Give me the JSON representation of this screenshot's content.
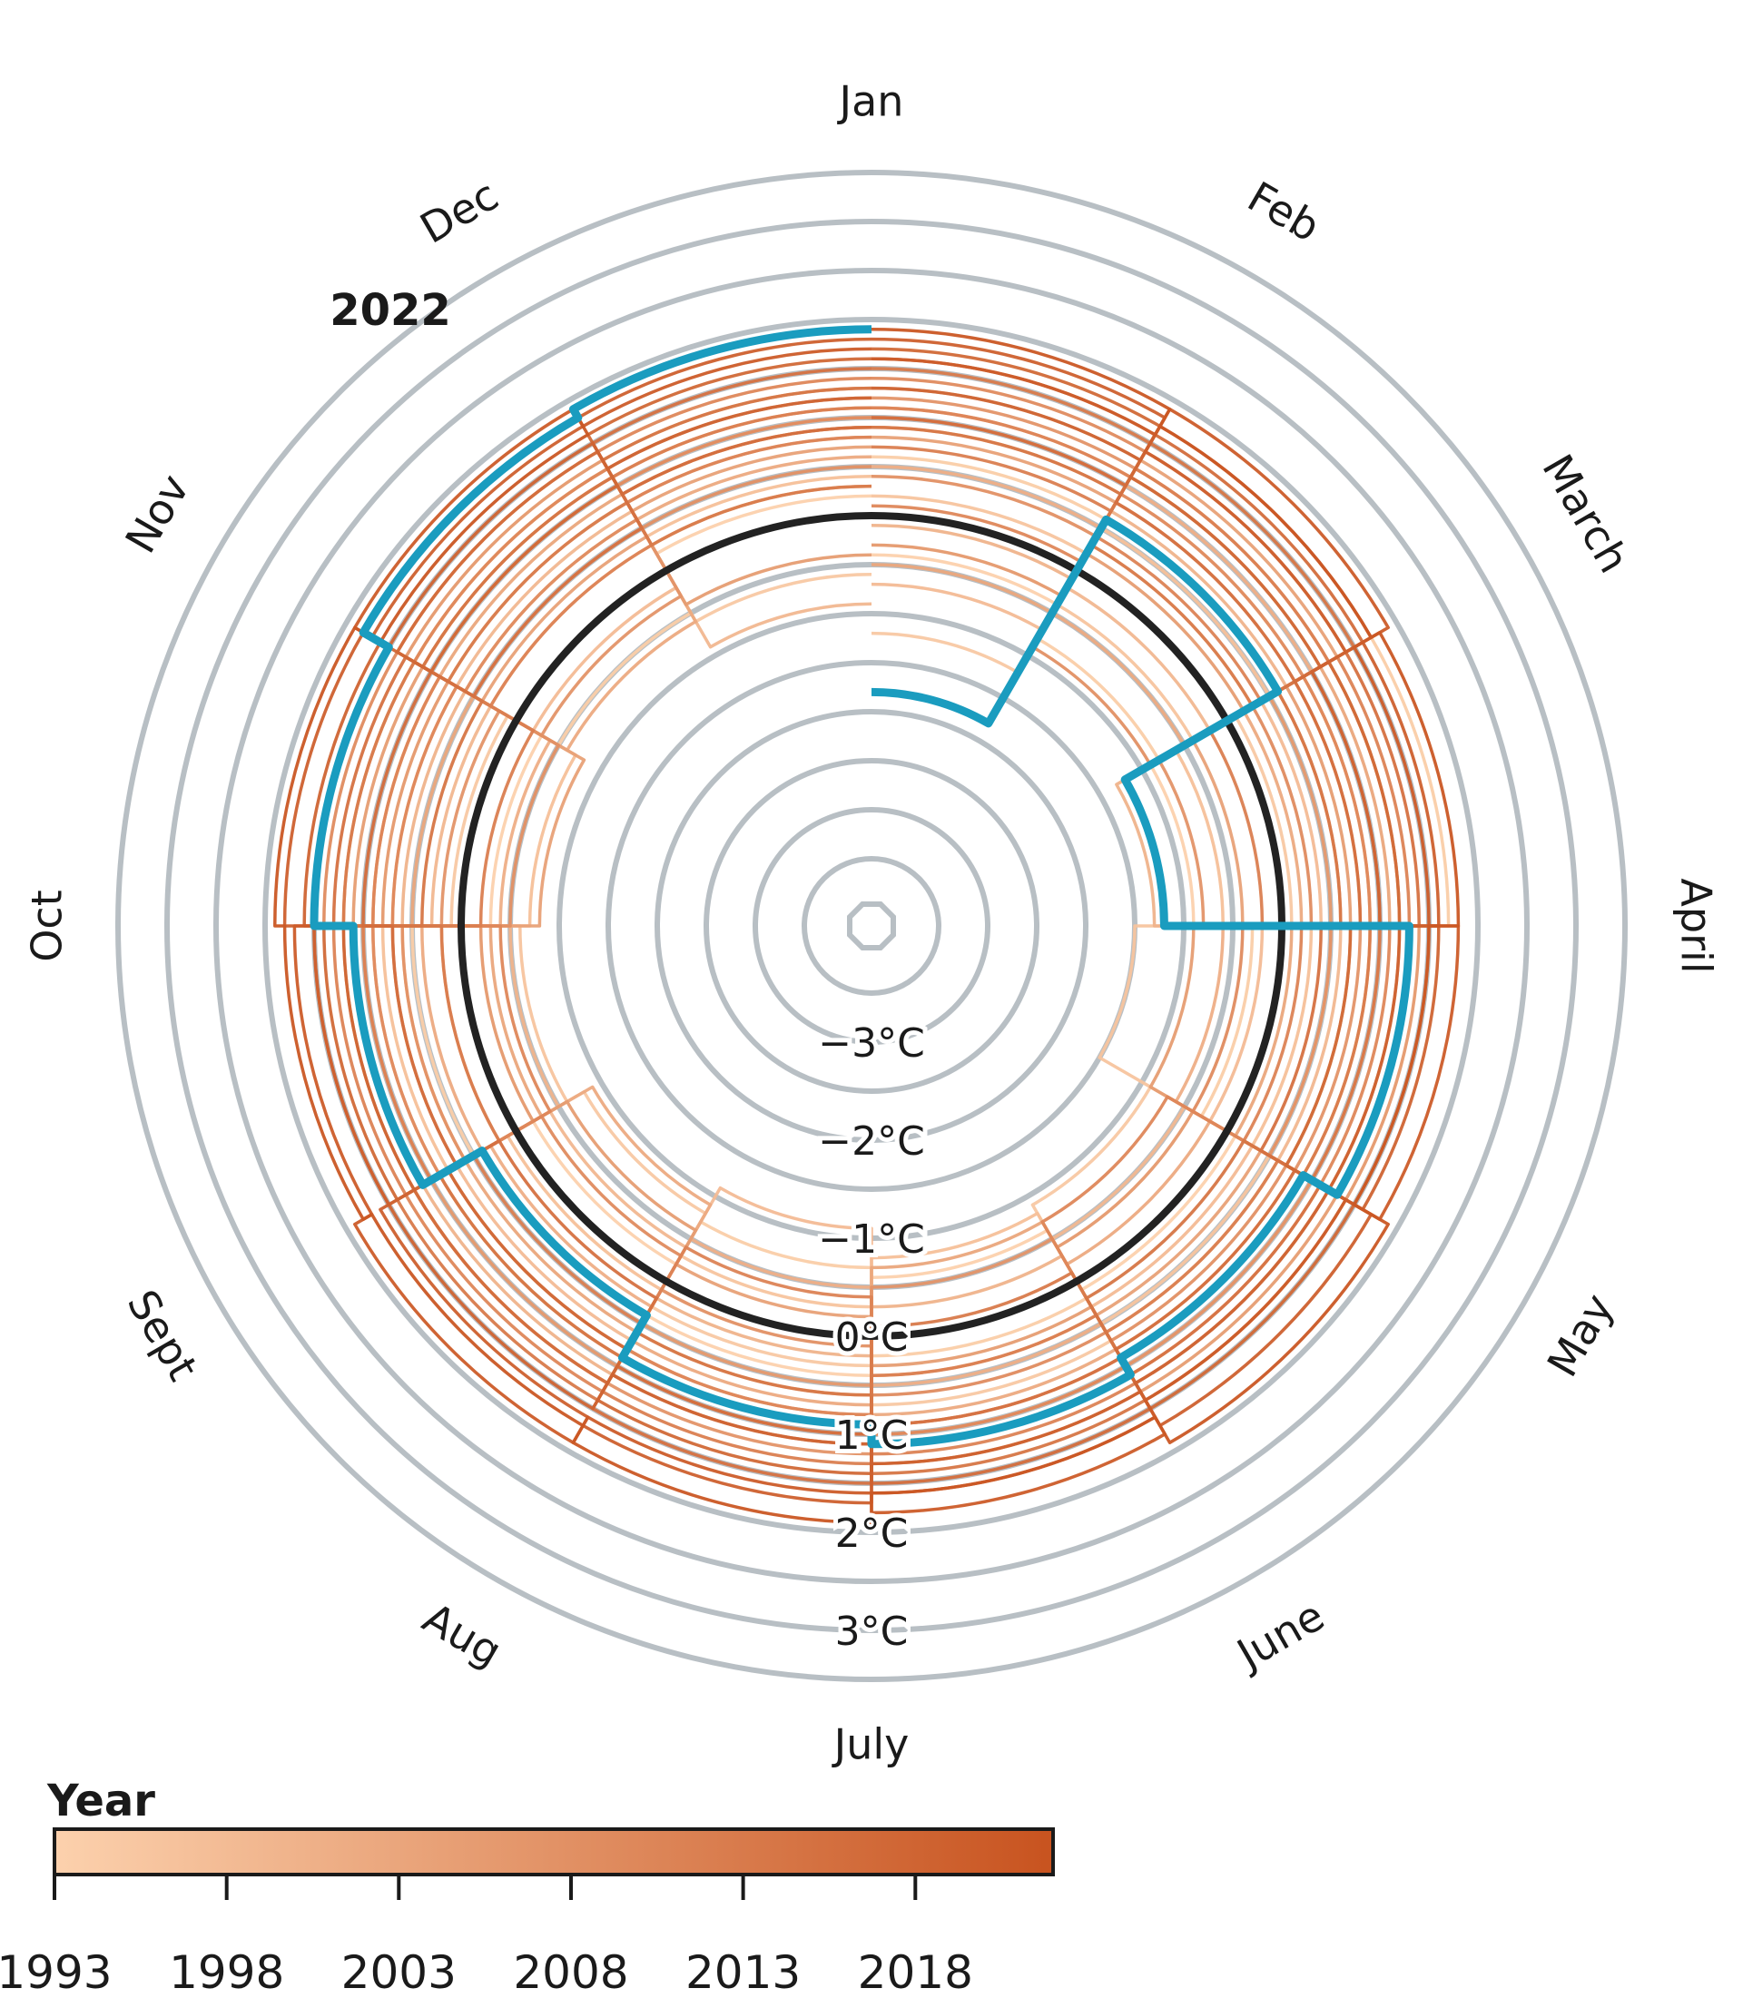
{
  "chart_data": {
    "type": "polar-line",
    "title": "",
    "corner_label": "",
    "angle_axis": {
      "labels": [
        "Jan",
        "Feb",
        "March",
        "April",
        "May",
        "June",
        "July",
        "Aug",
        "Sept",
        "Oct",
        "Nov",
        "Dec"
      ],
      "direction": "clockwise",
      "start": "top"
    },
    "radial_axis": {
      "unit": "°C",
      "range": [
        -4,
        3.5
      ],
      "grid_step": 0.5,
      "labels": [
        "−3°C",
        "−2°C",
        "−1°C",
        "0°C",
        "1°C",
        "2°C",
        "3°C"
      ],
      "label_values": [
        -3,
        -2,
        -1,
        0,
        1,
        2,
        3
      ],
      "grid": true
    },
    "reference": {
      "name": "0°C",
      "value": 0,
      "color": "#222222"
    },
    "highlight": {
      "name": "2022",
      "color": "#1a9cbf",
      "months": [
        "Jan",
        "Feb",
        "March",
        "April",
        "May",
        "June",
        "July",
        "Aug",
        "Sept",
        "Oct",
        "Nov",
        "Dec"
      ],
      "values": [
        -1.8,
        0.6,
        -1.2,
        1.3,
        0.9,
        1.1,
        0.9,
        0.4,
        1.1,
        1.5,
        1.8,
        1.9
      ]
    },
    "series": [
      {
        "year": 1993,
        "values": [
          -0.4,
          0.3,
          -0.9,
          0.5,
          0.1,
          -0.6,
          0.4,
          -0.2,
          1.1,
          -0.3,
          0.6,
          0.2
        ]
      },
      {
        "year": 1994,
        "values": [
          0.6,
          -0.8,
          1.7,
          -0.3,
          0.8,
          0.2,
          -0.7,
          1.2,
          0.5,
          0.9,
          -0.5,
          0.9
        ]
      },
      {
        "year": 1995,
        "values": [
          -1.2,
          0.9,
          0.1,
          1.0,
          -0.9,
          0.7,
          0.3,
          -0.8,
          0.6,
          0.1,
          0.8,
          -0.6
        ]
      },
      {
        "year": 1996,
        "values": [
          0.2,
          -0.4,
          0.8,
          -1.5,
          0.5,
          0.9,
          -0.3,
          0.4,
          -0.6,
          0.7,
          0.3,
          1.0
        ]
      },
      {
        "year": 1997,
        "values": [
          0.9,
          0.5,
          -0.6,
          0.3,
          1.1,
          -0.8,
          0.6,
          0.1,
          0.8,
          -0.7,
          1.0,
          0.4
        ]
      },
      {
        "year": 1998,
        "values": [
          -0.7,
          1.2,
          0.4,
          -0.2,
          0.3,
          1.0,
          -1.1,
          0.7,
          0.2,
          0.9,
          -0.2,
          0.8
        ]
      },
      {
        "year": 1999,
        "values": [
          1.1,
          -0.2,
          0.9,
          0.6,
          -0.5,
          0.4,
          0.9,
          -0.4,
          1.0,
          0.3,
          0.7,
          -0.9
        ]
      },
      {
        "year": 2000,
        "values": [
          -0.1,
          0.7,
          -1.3,
          0.9,
          0.6,
          -0.3,
          0.2,
          1.1,
          -0.5,
          0.6,
          1.2,
          0.3
        ]
      },
      {
        "year": 2001,
        "values": [
          0.5,
          1.0,
          0.6,
          -0.6,
          1.0,
          0.5,
          -0.5,
          0.3,
          0.9,
          -0.4,
          0.5,
          1.1
        ]
      },
      {
        "year": 2002,
        "values": [
          1.3,
          -0.5,
          0.2,
          1.2,
          -0.2,
          0.8,
          0.7,
          -0.9,
          0.4,
          1.2,
          -0.6,
          0.6
        ]
      },
      {
        "year": 2003,
        "values": [
          -0.5,
          0.8,
          1.1,
          0.1,
          0.9,
          -0.7,
          1.0,
          0.6,
          -0.3,
          0.5,
          0.9,
          1.3
        ]
      },
      {
        "year": 2004,
        "values": [
          0.8,
          1.3,
          -0.4,
          0.7,
          0.4,
          1.1,
          -0.2,
          0.9,
          1.2,
          -0.8,
          0.4,
          0.7
        ]
      },
      {
        "year": 2005,
        "values": [
          1.0,
          0.2,
          0.7,
          -0.9,
          1.3,
          0.3,
          0.8,
          -0.6,
          0.7,
          1.1,
          1.0,
          -0.4
        ]
      },
      {
        "year": 2006,
        "values": [
          -0.3,
          1.1,
          0.5,
          1.4,
          -0.4,
          0.9,
          0.5,
          1.0,
          -0.2,
          0.8,
          1.3,
          0.9
        ]
      },
      {
        "year": 2007,
        "values": [
          1.2,
          0.6,
          -0.8,
          0.8,
          1.0,
          -0.5,
          1.2,
          0.4,
          1.1,
          0.2,
          -0.3,
          1.2
        ]
      },
      {
        "year": 2008,
        "values": [
          0.4,
          -0.9,
          1.2,
          0.5,
          0.7,
          1.3,
          0.1,
          1.2,
          0.6,
          -0.5,
          1.1,
          0.5
        ]
      },
      {
        "year": 2009,
        "values": [
          1.4,
          0.9,
          0.3,
          -0.4,
          1.2,
          0.6,
          1.1,
          -0.3,
          0.9,
          1.4,
          0.6,
          1.0
        ]
      },
      {
        "year": 2010,
        "values": [
          0.1,
          1.4,
          0.9,
          1.1,
          -0.7,
          1.0,
          0.8,
          1.3,
          -0.4,
          0.7,
          1.2,
          1.4
        ]
      },
      {
        "year": 2011,
        "values": [
          1.1,
          0.4,
          1.3,
          0.2,
          0.9,
          1.2,
          -0.4,
          0.8,
          1.3,
          0.9,
          0.3,
          0.8
        ]
      },
      {
        "year": 2012,
        "values": [
          0.7,
          1.2,
          -0.2,
          1.5,
          0.6,
          0.4,
          1.3,
          0.5,
          1.0,
          -0.2,
          1.4,
          1.1
        ]
      },
      {
        "year": 2013,
        "values": [
          1.5,
          0.3,
          1.0,
          0.9,
          1.4,
          -0.1,
          0.9,
          1.4,
          0.2,
          1.2,
          0.8,
          0.3
        ]
      },
      {
        "year": 2014,
        "values": [
          0.9,
          1.5,
          0.6,
          1.0,
          0.2,
          1.4,
          0.6,
          0.9,
          1.5,
          0.4,
          1.1,
          1.3
        ]
      },
      {
        "year": 2015,
        "values": [
          1.6,
          0.8,
          1.4,
          0.4,
          1.1,
          0.9,
          1.5,
          0.2,
          1.1,
          1.3,
          0.5,
          1.5
        ]
      },
      {
        "year": 2016,
        "values": [
          1.0,
          1.6,
          0.8,
          1.3,
          0.8,
          1.5,
          1.0,
          1.2,
          0.7,
          1.0,
          1.4,
          0.9
        ]
      },
      {
        "year": 2017,
        "values": [
          1.7,
          1.1,
          1.2,
          0.7,
          1.5,
          1.1,
          1.4,
          0.8,
          1.4,
          1.5,
          1.0,
          1.6
        ]
      },
      {
        "year": 2018,
        "values": [
          1.3,
          1.7,
          1.0,
          1.6,
          1.2,
          1.6,
          1.1,
          1.5,
          1.2,
          1.6,
          1.5,
          1.2
        ]
      },
      {
        "year": 2019,
        "values": [
          1.8,
          1.4,
          1.6,
          1.2,
          1.7,
          1.3,
          1.7,
          1.6,
          1.5,
          1.8,
          1.7,
          1.8
        ]
      },
      {
        "year": 2020,
        "values": [
          1.6,
          1.9,
          1.5,
          1.8,
          1.4,
          1.8,
          1.6,
          1.9,
          1.7,
          1.5,
          1.9,
          1.7
        ]
      },
      {
        "year": 2021,
        "values": [
          1.9,
          1.7,
          1.8,
          1.5,
          1.9,
          1.6,
          1.9,
          1.7,
          1.8,
          1.9,
          1.6,
          1.9
        ]
      }
    ],
    "annotations": [
      {
        "text": "2022",
        "color": "#2a2a2a"
      }
    ],
    "legend": {
      "title": "Year",
      "type": "colorbar",
      "color_from": "#fcd1ad",
      "color_to": "#c8531f",
      "range": [
        1993,
        2022
      ],
      "ticks": [
        "1993",
        "1998",
        "2003",
        "2008",
        "2013",
        "2018"
      ],
      "tick_values": [
        1993,
        1998,
        2003,
        2008,
        2013,
        2018
      ],
      "placement": "bottom-left"
    },
    "colors": {
      "grid": "#b8bfc4",
      "background": "#ffffff"
    }
  }
}
